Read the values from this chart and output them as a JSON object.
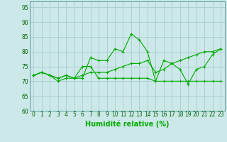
{
  "background_color": "#cce8e8",
  "grid_color": "#aacccc",
  "line_color": "#00aa00",
  "xlabel": "Humidité relative (%)",
  "xlabel_fontsize": 7,
  "tick_fontsize": 5.5,
  "xlim": [
    -0.5,
    23.5
  ],
  "ylim": [
    60,
    97
  ],
  "yticks": [
    60,
    65,
    70,
    75,
    80,
    85,
    90,
    95
  ],
  "xticks": [
    0,
    1,
    2,
    3,
    4,
    5,
    6,
    7,
    8,
    9,
    10,
    11,
    12,
    13,
    14,
    15,
    16,
    17,
    18,
    19,
    20,
    21,
    22,
    23
  ],
  "series": [
    [
      72,
      73,
      72,
      71,
      72,
      71,
      71,
      78,
      77,
      77,
      81,
      80,
      86,
      84,
      80,
      70,
      77,
      76,
      74,
      69,
      74,
      75,
      79,
      81
    ],
    [
      72,
      73,
      72,
      70,
      71,
      71,
      75,
      75,
      71,
      71,
      71,
      71,
      71,
      71,
      71,
      70,
      70,
      70,
      70,
      70,
      70,
      70,
      70,
      70
    ],
    [
      72,
      73,
      72,
      71,
      72,
      71,
      72,
      73,
      73,
      73,
      74,
      75,
      76,
      76,
      77,
      73,
      74,
      76,
      77,
      78,
      79,
      80,
      80,
      81
    ]
  ]
}
